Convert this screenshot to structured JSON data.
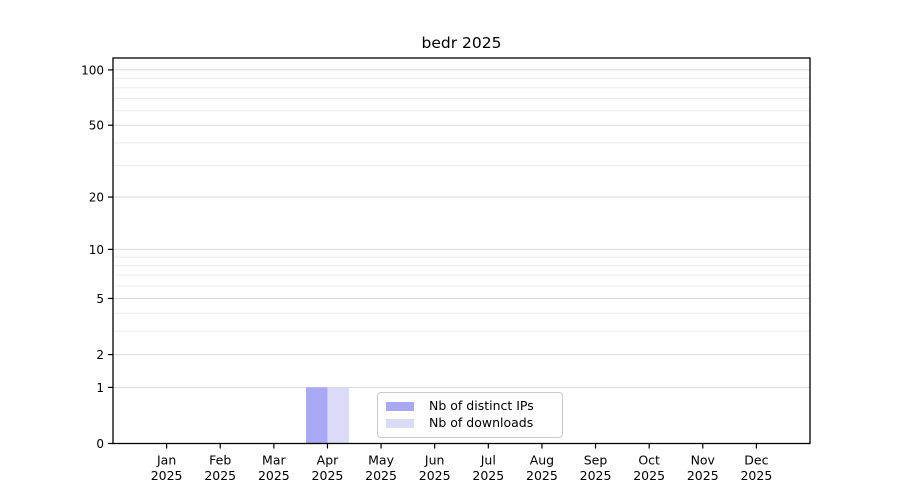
{
  "page": {
    "background": "#ffffff"
  },
  "chart_data": {
    "type": "bar",
    "title": "bedr 2025",
    "xlabel": "",
    "ylabel": "",
    "year": "2025",
    "categories": [
      "Jan",
      "Feb",
      "Mar",
      "Apr",
      "May",
      "Jun",
      "Jul",
      "Aug",
      "Sep",
      "Oct",
      "Nov",
      "Dec"
    ],
    "series": [
      {
        "name": "Nb of distinct IPs",
        "color": "#a8a8f5",
        "values": [
          0,
          0,
          0,
          1,
          0,
          0,
          0,
          0,
          0,
          0,
          0,
          0
        ]
      },
      {
        "name": "Nb of downloads",
        "color": "#dbdbf8",
        "values": [
          0,
          0,
          0,
          1,
          0,
          0,
          0,
          0,
          0,
          0,
          0,
          0
        ]
      }
    ],
    "y_scale": "log1p",
    "y_ticks": [
      0,
      1,
      2,
      5,
      10,
      20,
      50,
      100
    ],
    "y_minor_gridlines": [
      3,
      4,
      6,
      7,
      8,
      9,
      30,
      40,
      60,
      70,
      80,
      90
    ],
    "ylim": [
      0,
      116
    ],
    "grid": "horizontal",
    "legend_position": "lower-center-inside",
    "axis_color": "#000000",
    "major_grid_color": "#dadada",
    "minor_grid_color": "#ededed"
  }
}
